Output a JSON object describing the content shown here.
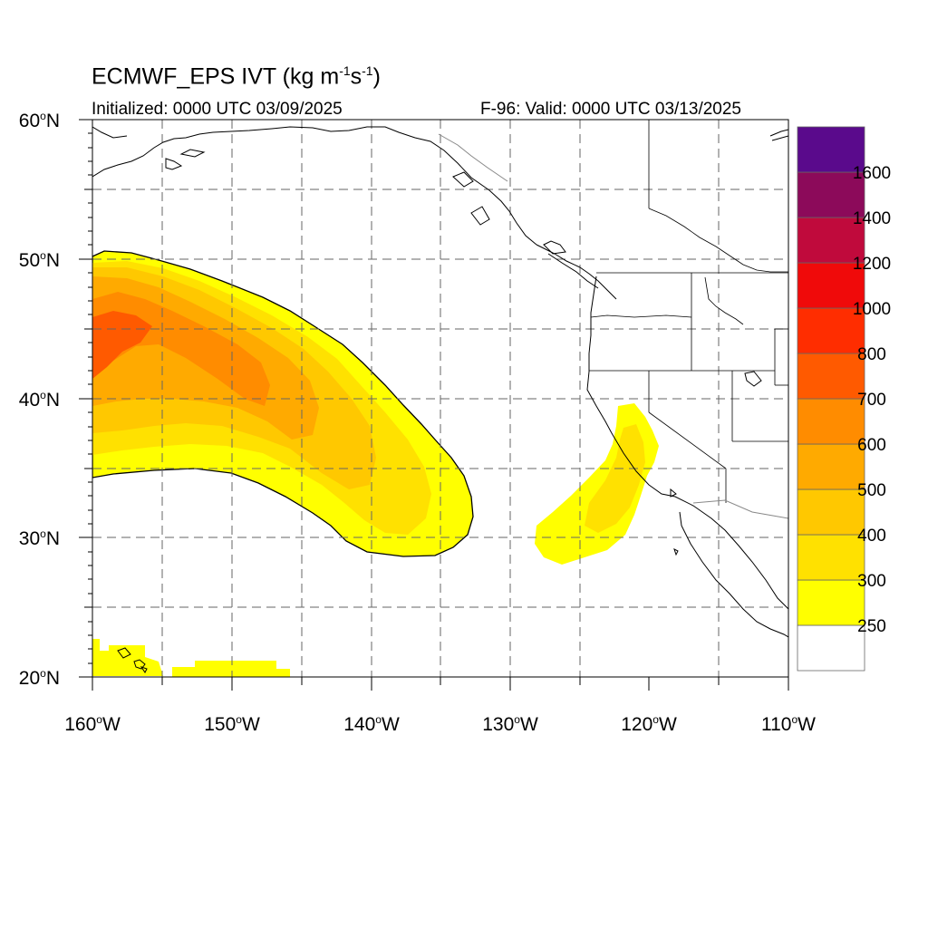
{
  "header": {
    "title_prefix": "ECMWF_EPS IVT (kg m",
    "title_exp1": "-1",
    "title_mid": "s",
    "title_exp2": "-1",
    "title_suffix": ")",
    "initialized": "Initialized: 0000 UTC 03/09/2025",
    "valid": "F-96: Valid: 0000 UTC 03/13/2025"
  },
  "axes": {
    "lat_labels": [
      {
        "deg": 60,
        "hemi": "N"
      },
      {
        "deg": 50,
        "hemi": "N"
      },
      {
        "deg": 40,
        "hemi": "N"
      },
      {
        "deg": 30,
        "hemi": "N"
      },
      {
        "deg": 20,
        "hemi": "N"
      }
    ],
    "lon_labels": [
      {
        "deg": 160,
        "hemi": "W"
      },
      {
        "deg": 150,
        "hemi": "W"
      },
      {
        "deg": 140,
        "hemi": "W"
      },
      {
        "deg": 130,
        "hemi": "W"
      },
      {
        "deg": 120,
        "hemi": "W"
      },
      {
        "deg": 110,
        "hemi": "W"
      }
    ],
    "lat_range": [
      20,
      60
    ],
    "lon_range": [
      -160,
      -110
    ],
    "gridlines": "dashed every 5 degrees"
  },
  "colorbar": {
    "labels": [
      "250",
      "300",
      "400",
      "500",
      "600",
      "700",
      "800",
      "1000",
      "1200",
      "1400",
      "1600"
    ],
    "colors": [
      "#ffffff",
      "#ffff00",
      "#ffe100",
      "#ffc800",
      "#ffaa00",
      "#ff8c00",
      "#ff5a00",
      "#ff2d00",
      "#f00a0a",
      "#c00a3c",
      "#8c0a5a",
      "#5a0a8c"
    ]
  },
  "colors": {
    "coast": "#000000",
    "grid": "#666666",
    "border_gray": "#888888"
  }
}
